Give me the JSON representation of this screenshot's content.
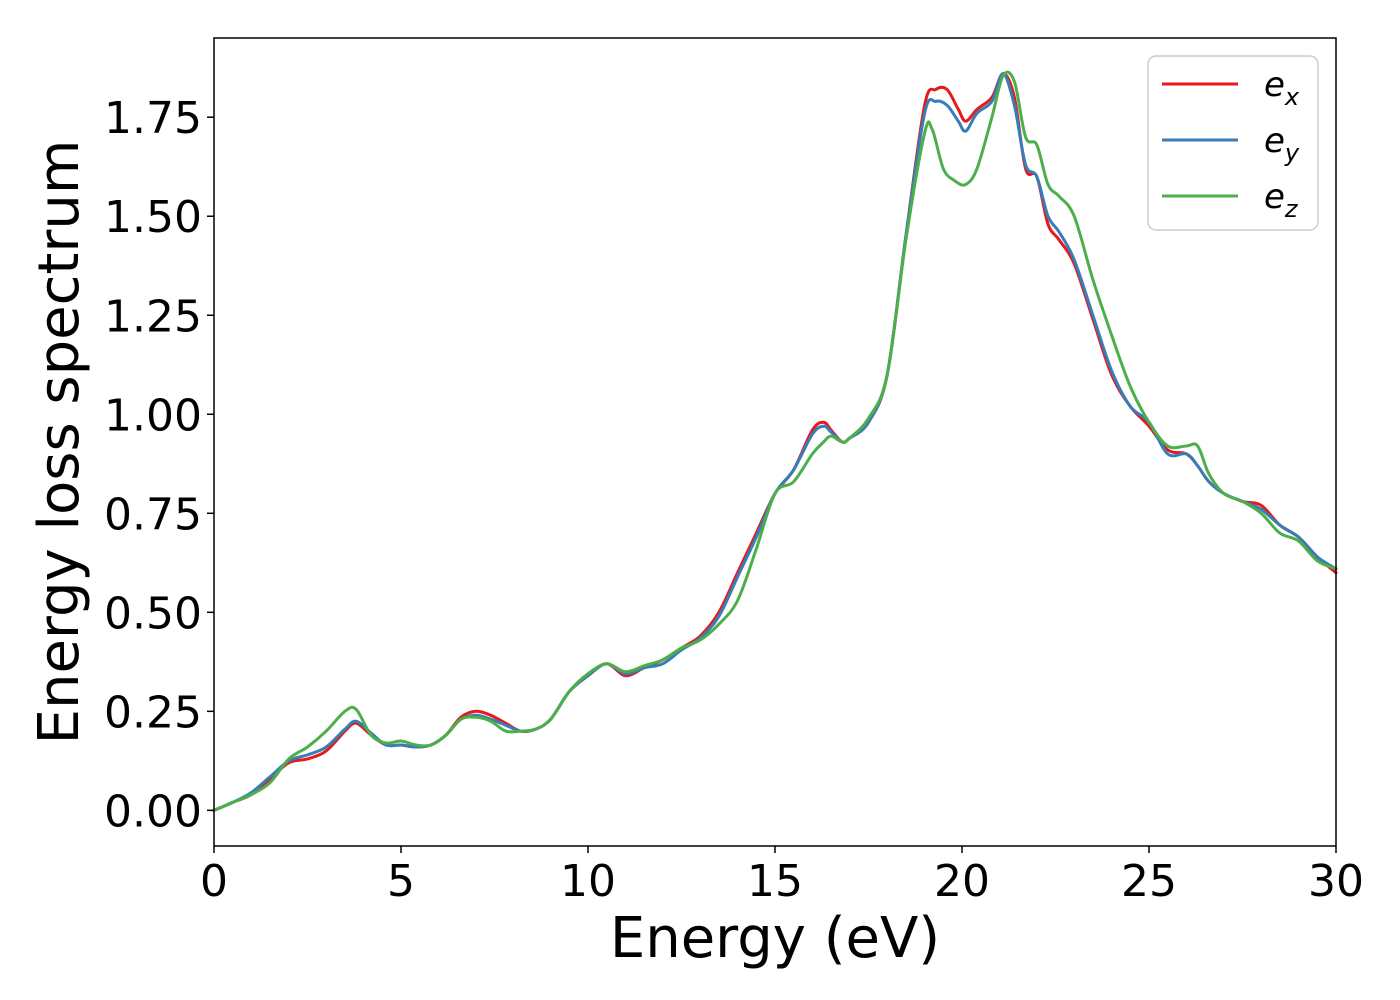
{
  "chart_data": {
    "type": "line",
    "title": "",
    "xlabel": "Energy (eV)",
    "ylabel": "Energy loss spectrum",
    "xlim": [
      0,
      30
    ],
    "ylim": [
      -0.09,
      1.95
    ],
    "xticks": [
      0,
      5,
      10,
      15,
      20,
      25,
      30
    ],
    "xtick_labels": [
      "0",
      "5",
      "10",
      "15",
      "20",
      "25",
      "30"
    ],
    "yticks": [
      0,
      0.25,
      0.5,
      0.75,
      1.0,
      1.25,
      1.5,
      1.75
    ],
    "ytick_labels": [
      "0.00",
      "0.25",
      "0.50",
      "0.75",
      "1.00",
      "1.25",
      "1.50",
      "1.75"
    ],
    "grid": false,
    "legend_position": "top-right",
    "series": [
      {
        "name": "e_x",
        "legend_base": "e",
        "legend_sub": "x",
        "color": "#e41a1c",
        "x": [
          0,
          0.5,
          1,
          1.5,
          2,
          2.5,
          3,
          3.5,
          3.8,
          4.2,
          4.6,
          5,
          5.4,
          5.8,
          6.2,
          6.6,
          7,
          7.4,
          7.8,
          8.2,
          8.6,
          9,
          9.5,
          10,
          10.5,
          11,
          11.5,
          12,
          12.5,
          13,
          13.5,
          14,
          14.5,
          15,
          15.5,
          16,
          16.3,
          16.5,
          16.8,
          17,
          17.5,
          18,
          18.5,
          19,
          19.3,
          19.6,
          19.9,
          20.1,
          20.4,
          20.8,
          21.1,
          21.4,
          21.7,
          22,
          22.3,
          22.6,
          23,
          23.5,
          24,
          24.5,
          25,
          25.5,
          26,
          26.3,
          26.6,
          27,
          27.5,
          28,
          28.5,
          29,
          29.5,
          30
        ],
        "y": [
          0,
          0.02,
          0.04,
          0.08,
          0.12,
          0.13,
          0.15,
          0.2,
          0.22,
          0.19,
          0.165,
          0.165,
          0.16,
          0.165,
          0.19,
          0.235,
          0.25,
          0.24,
          0.22,
          0.2,
          0.205,
          0.23,
          0.3,
          0.34,
          0.37,
          0.34,
          0.36,
          0.38,
          0.41,
          0.44,
          0.5,
          0.6,
          0.7,
          0.8,
          0.86,
          0.96,
          0.98,
          0.96,
          0.93,
          0.94,
          0.98,
          1.1,
          1.45,
          1.78,
          1.82,
          1.82,
          1.77,
          1.74,
          1.77,
          1.8,
          1.86,
          1.8,
          1.62,
          1.6,
          1.48,
          1.44,
          1.38,
          1.24,
          1.1,
          1.02,
          0.97,
          0.91,
          0.9,
          0.87,
          0.83,
          0.8,
          0.78,
          0.77,
          0.72,
          0.69,
          0.64,
          0.6
        ]
      },
      {
        "name": "e_y",
        "legend_base": "e",
        "legend_sub": "y",
        "color": "#377eb8",
        "x": [
          0,
          0.5,
          1,
          1.5,
          2,
          2.5,
          3,
          3.5,
          3.8,
          4.2,
          4.6,
          5,
          5.4,
          5.8,
          6.2,
          6.6,
          7,
          7.4,
          7.8,
          8.2,
          8.6,
          9,
          9.5,
          10,
          10.5,
          11,
          11.5,
          12,
          12.5,
          13,
          13.5,
          14,
          14.5,
          15,
          15.5,
          16,
          16.3,
          16.5,
          16.8,
          17,
          17.5,
          18,
          18.5,
          19,
          19.3,
          19.6,
          19.9,
          20.1,
          20.4,
          20.8,
          21.1,
          21.4,
          21.7,
          22,
          22.3,
          22.6,
          23,
          23.5,
          24,
          24.5,
          25,
          25.5,
          26,
          26.3,
          26.6,
          27,
          27.5,
          28,
          28.5,
          29,
          29.5,
          30
        ],
        "y": [
          0,
          0.02,
          0.045,
          0.085,
          0.125,
          0.14,
          0.16,
          0.205,
          0.225,
          0.195,
          0.165,
          0.165,
          0.16,
          0.165,
          0.19,
          0.23,
          0.24,
          0.23,
          0.215,
          0.2,
          0.205,
          0.23,
          0.3,
          0.34,
          0.37,
          0.345,
          0.36,
          0.37,
          0.405,
          0.435,
          0.49,
          0.59,
          0.69,
          0.8,
          0.86,
          0.95,
          0.97,
          0.955,
          0.93,
          0.94,
          0.98,
          1.1,
          1.45,
          1.76,
          1.79,
          1.78,
          1.74,
          1.715,
          1.76,
          1.79,
          1.86,
          1.78,
          1.63,
          1.6,
          1.5,
          1.46,
          1.39,
          1.25,
          1.11,
          1.02,
          0.98,
          0.9,
          0.9,
          0.87,
          0.83,
          0.8,
          0.78,
          0.76,
          0.72,
          0.69,
          0.64,
          0.61
        ]
      },
      {
        "name": "e_z",
        "legend_base": "e",
        "legend_sub": "z",
        "color": "#4daf4a",
        "x": [
          0,
          0.5,
          1,
          1.5,
          2,
          2.5,
          3,
          3.5,
          3.8,
          4.2,
          4.6,
          5,
          5.4,
          5.8,
          6.2,
          6.6,
          7,
          7.4,
          7.8,
          8.2,
          8.6,
          9,
          9.5,
          10,
          10.5,
          11,
          11.5,
          12,
          12.5,
          13,
          13.5,
          14,
          14.5,
          15,
          15.5,
          16,
          16.3,
          16.5,
          16.8,
          17,
          17.5,
          18,
          18.5,
          19,
          19.2,
          19.5,
          19.8,
          20.1,
          20.4,
          20.8,
          21.1,
          21.4,
          21.7,
          22,
          22.3,
          22.6,
          23,
          23.5,
          24,
          24.5,
          25,
          25.5,
          26,
          26.3,
          26.6,
          27,
          27.5,
          28,
          28.5,
          29,
          29.5,
          30
        ],
        "y": [
          0,
          0.02,
          0.04,
          0.07,
          0.13,
          0.16,
          0.2,
          0.25,
          0.255,
          0.19,
          0.17,
          0.175,
          0.165,
          0.165,
          0.19,
          0.23,
          0.235,
          0.225,
          0.2,
          0.2,
          0.205,
          0.23,
          0.3,
          0.345,
          0.37,
          0.35,
          0.365,
          0.38,
          0.41,
          0.43,
          0.47,
          0.53,
          0.66,
          0.8,
          0.83,
          0.9,
          0.93,
          0.945,
          0.93,
          0.94,
          0.99,
          1.1,
          1.44,
          1.71,
          1.72,
          1.62,
          1.59,
          1.58,
          1.62,
          1.75,
          1.855,
          1.84,
          1.7,
          1.68,
          1.58,
          1.55,
          1.5,
          1.34,
          1.2,
          1.07,
          0.98,
          0.92,
          0.92,
          0.92,
          0.85,
          0.8,
          0.78,
          0.75,
          0.7,
          0.68,
          0.63,
          0.61
        ]
      }
    ]
  }
}
